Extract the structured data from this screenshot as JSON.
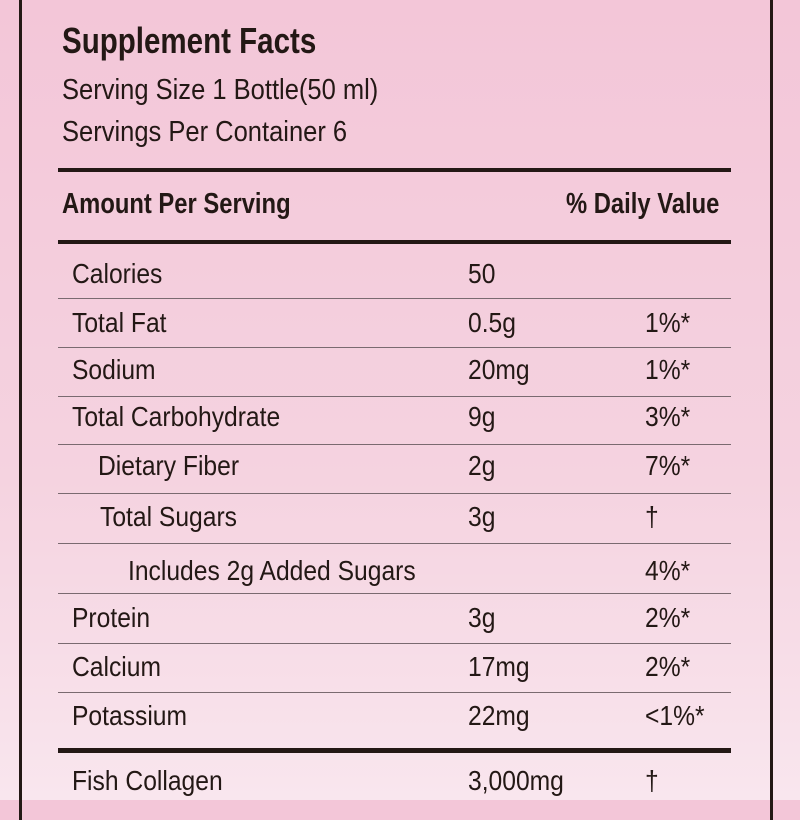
{
  "title": "Supplement Facts",
  "serving_size": "Serving Size 1 Bottle(50 ml)",
  "servings_per_container": "Servings Per Container 6",
  "header": {
    "amount": "Amount Per Serving",
    "daily_value": "% Daily Value"
  },
  "rows": [
    {
      "name": "Calories",
      "amount": "50",
      "dv": ""
    },
    {
      "name": "Total Fat",
      "amount": "0.5g",
      "dv": "1%*"
    },
    {
      "name": "Sodium",
      "amount": "20mg",
      "dv": "1%*"
    },
    {
      "name": "Total Carbohydrate",
      "amount": "9g",
      "dv": "3%*"
    },
    {
      "name": "Dietary Fiber",
      "amount": "2g",
      "dv": "7%*"
    },
    {
      "name": "Total Sugars",
      "amount": "3g",
      "dv": "†"
    },
    {
      "name": "Includes 2g Added Sugars",
      "amount": "",
      "dv": "4%*"
    },
    {
      "name": "Protein",
      "amount": "3g",
      "dv": "2%*"
    },
    {
      "name": "Calcium",
      "amount": "17mg",
      "dv": "2%*"
    },
    {
      "name": "Potassium",
      "amount": "22mg",
      "dv": "<1%*"
    },
    {
      "name": "Fish Collagen",
      "amount": "3,000mg",
      "dv": "†"
    }
  ]
}
